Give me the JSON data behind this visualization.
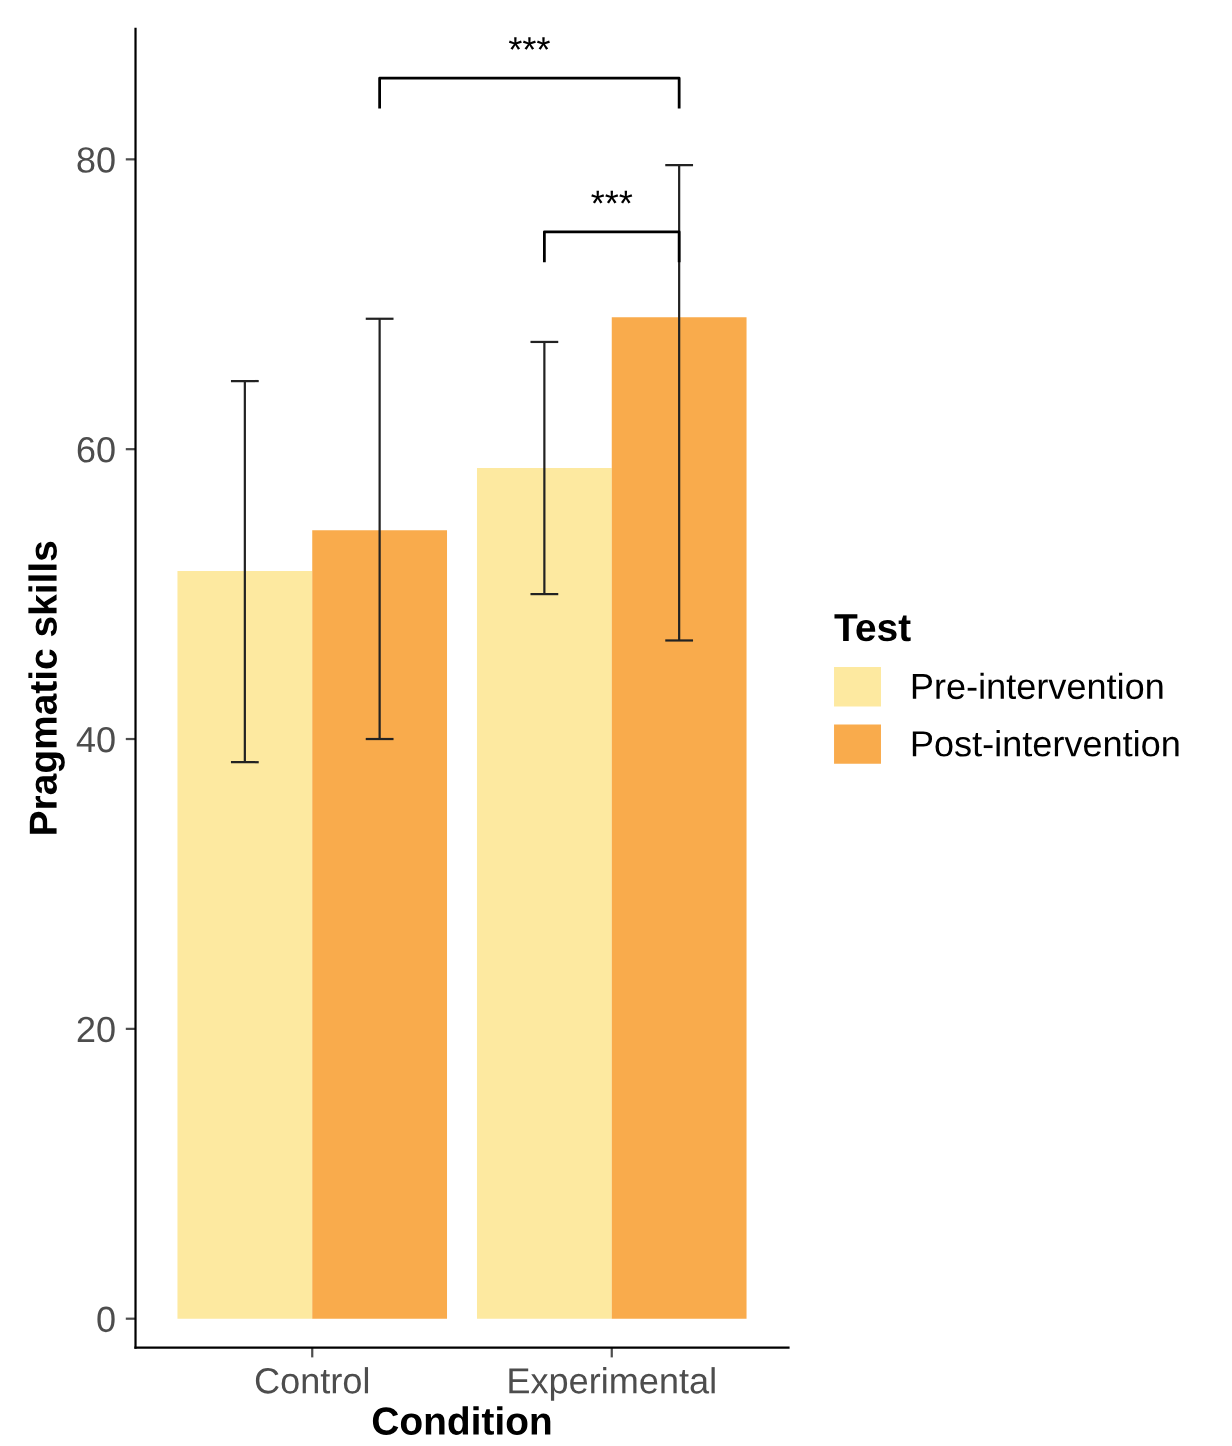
{
  "chart_data": {
    "type": "bar",
    "xlabel": "Condition",
    "ylabel": "Pragmatic skills",
    "legend_title": "Test",
    "categories": [
      "Control",
      "Experimental"
    ],
    "series": [
      {
        "name": "Pre-intervention",
        "color": "#fde9a0",
        "values": [
          51.6,
          58.7
        ],
        "errors": [
          [
            38.4,
            64.7
          ],
          [
            50.0,
            67.4
          ]
        ]
      },
      {
        "name": "Post-intervention",
        "color": "#f9ab4c",
        "values": [
          54.4,
          69.1
        ],
        "errors": [
          [
            40.0,
            69.0
          ],
          [
            46.8,
            79.6
          ]
        ]
      }
    ],
    "ylim": [
      -2,
      89
    ],
    "yticks": [
      0,
      20,
      40,
      60,
      80
    ],
    "grid": false,
    "legend": "right",
    "annotations": [
      "***",
      "***"
    ]
  }
}
